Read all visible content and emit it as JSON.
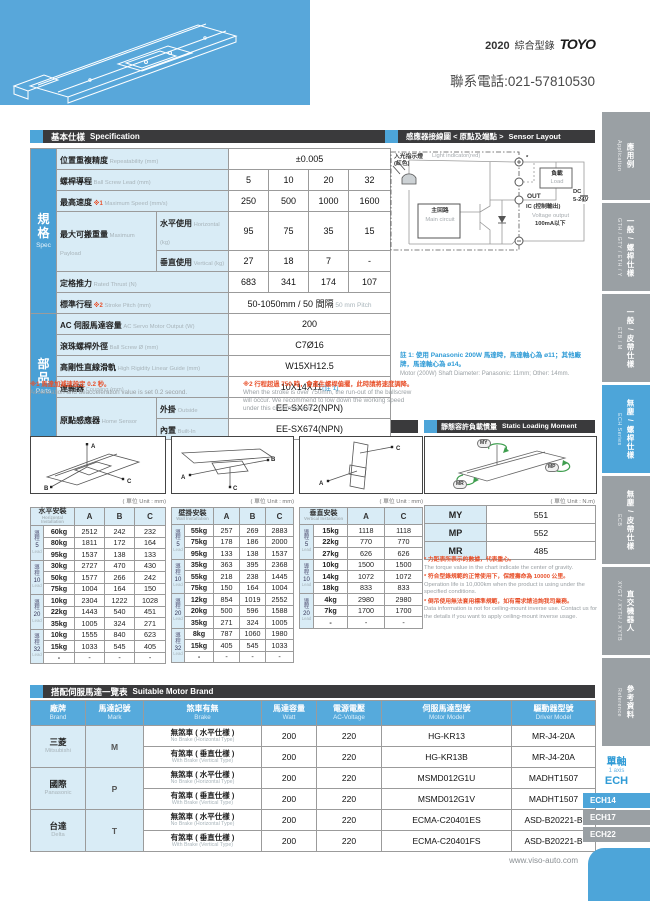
{
  "colors": {
    "accent_blue": "#4da5d9",
    "header_bar": "#3a3a3c",
    "light_blue": "#d9ecf6",
    "note_red": "#e8502a",
    "note_blue": "#2f9bd6",
    "tab_gray": "#9aa0a4"
  },
  "header": {
    "catalog_year": "2020",
    "catalog_label": "綜合型錄",
    "brand_logo": "TOYO",
    "phone": "聯系電話:021-57810530"
  },
  "footer": {
    "website": "www.viso-auto.com"
  },
  "sidebar": {
    "tabs": [
      {
        "zh": "應用例",
        "en": "Application",
        "active": false
      },
      {
        "zh": "一般 / 螺桿仕樣",
        "en": "GTH / GTY / ETH / Y",
        "active": false
      },
      {
        "zh": "一般 / 皮帶仕樣",
        "en": "ETB / M",
        "active": false
      },
      {
        "zh": "無塵 / 螺桿仕樣",
        "en": "ECH Series",
        "active": true
      },
      {
        "zh": "無塵 / 皮帶仕樣",
        "en": "ECB",
        "active": false
      },
      {
        "zh": "直交機器人",
        "en": "XYGT / XYTH / XYTB",
        "active": false
      },
      {
        "zh": "參考資料",
        "en": "Reference",
        "active": false
      }
    ],
    "series": {
      "zh": "單軸",
      "en": "1 axis",
      "code": "ECH"
    },
    "models": [
      {
        "label": "ECH14",
        "active": true
      },
      {
        "label": "ECH17",
        "active": false
      },
      {
        "label": "ECH22",
        "active": false
      }
    ]
  },
  "spec": {
    "title_zh": "基本仕樣",
    "title_en": "Specification",
    "rows": [
      {
        "group": {
          "zh": "規格",
          "en": "Spec",
          "rowspan": 7
        },
        "label": {
          "zh": "位置重複精度",
          "en": "Repeatability (mm)"
        },
        "values": [
          "±0.005"
        ],
        "colspan": 4
      },
      {
        "label": {
          "zh": "螺桿導程",
          "en": "Ball Screw Lead (mm)"
        },
        "values": [
          "5",
          "10",
          "20",
          "32"
        ]
      },
      {
        "label": {
          "zh": "最高速度",
          "en": "Maximum Speed (mm/s)",
          "note": "※1"
        },
        "values": [
          "250",
          "500",
          "1000",
          "1600"
        ]
      },
      {
        "label": {
          "zh": "最大可搬重量",
          "en": "Maximum Payload",
          "rowspan": 2
        },
        "sub": {
          "zh": "水平使用",
          "en": "Horizontal (kg)"
        },
        "values": [
          "95",
          "75",
          "35",
          "15"
        ]
      },
      {
        "sub": {
          "zh": "垂直使用",
          "en": "Vertical (kg)"
        },
        "values": [
          "27",
          "18",
          "7",
          "-"
        ]
      },
      {
        "label": {
          "zh": "定格推力",
          "en": "Rated Thrust (N)"
        },
        "values": [
          "683",
          "341",
          "174",
          "107"
        ]
      },
      {
        "label": {
          "zh": "標準行程",
          "en": "Stroke Pitch (mm)",
          "note": "※2"
        },
        "values": [
          "50-1050mm / 50 間隔"
        ],
        "suffix": "50 mm Pitch",
        "colspan": 4
      },
      {
        "group": {
          "zh": "部品",
          "en": "Parts",
          "rowspan": 6
        },
        "label": {
          "zh": "AC 伺服馬達容量",
          "en": "AC Servo Motor Output (W)"
        },
        "values": [
          "200"
        ],
        "colspan": 4
      },
      {
        "label": {
          "zh": "滾珠螺桿外徑",
          "en": "Ball Screw Ø (mm)"
        },
        "values": [
          "C7Ø16"
        ],
        "colspan": 4
      },
      {
        "label": {
          "zh": "高剛性直線滑軌",
          "en": "High Rigidity Linear Guide (mm)"
        },
        "values": [
          "W15XH12.5"
        ],
        "colspan": 4
      },
      {
        "label": {
          "zh": "連軸器",
          "en": "Coupling (mm)"
        },
        "values": [
          "10X14X11"
        ],
        "value_note": "(註 1)",
        "colspan": 4
      },
      {
        "label": {
          "zh": "原點感應器",
          "en": "Home Sensor",
          "rowspan": 2
        },
        "sub": {
          "zh": "外掛",
          "en": "Outside"
        },
        "values": [
          "EE-SX672(NPN)"
        ],
        "colspan": 4
      },
      {
        "sub": {
          "zh": "內置",
          "en": "Built-In"
        },
        "values": [
          "EE-SX674(NPN)"
        ],
        "colspan": 4
      }
    ],
    "footnotes": [
      {
        "zh": "※1 馬達加減速設定 0.2 秒。",
        "en": "Acceleration and deacceleration value is set 0.2 second."
      },
      {
        "zh": "※2 行程超過 750 時，會產生螺桿偏擺，此時請將速度調降。",
        "en": "When the stroke is over 750mm, the run-out of the ballscrew will occur. We recommend to low down the working speed under this circumstances."
      }
    ]
  },
  "sensor": {
    "title_zh": "感應器接線圖 < 原點及端點 >",
    "title_en": "Sensor Layout",
    "labels": {
      "light_zh": "入光指示燈(紅色)",
      "light_en": "Light indicator(red)",
      "main_zh": "主回路",
      "main_en": "Main circuit",
      "load_zh": "負載",
      "load_en": "Load",
      "out": "OUT",
      "terminal_note": "*",
      "ic_zh": "IC (控制輸出)",
      "ic_en": "Voltage output",
      "ic_limit": "100mA以下",
      "dc_line1": "DC",
      "dc_line2": "5-24V"
    },
    "note_zh": "註 1: 使用 Panasonic 200W 馬達時，馬達軸心為 ø11；其他廠牌，馬達軸心為 ø14。",
    "note_en": "Motor (200W) Shaft Diameter: Panasonic: 11mm; Other: 14mm."
  },
  "overhang": {
    "title_zh": "容許負載力距表",
    "title_en": "Allowable Overhang",
    "unit": "( 單位 Unit : mm)",
    "lead_zh": "導程",
    "lead_en": "Lead",
    "tables": [
      {
        "name_zh": "水平安裝",
        "name_en": "Horizontal Installation",
        "cols": [
          "A",
          "B",
          "C"
        ],
        "groups": [
          {
            "lead": "5",
            "rows": [
              [
                "60kg",
                "2512",
                "242",
                "232"
              ],
              [
                "80kg",
                "1811",
                "172",
                "164"
              ],
              [
                "95kg",
                "1537",
                "138",
                "133"
              ]
            ]
          },
          {
            "lead": "10",
            "rows": [
              [
                "30kg",
                "2727",
                "470",
                "430"
              ],
              [
                "50kg",
                "1577",
                "266",
                "242"
              ],
              [
                "75kg",
                "1004",
                "164",
                "150"
              ]
            ]
          },
          {
            "lead": "20",
            "rows": [
              [
                "10kg",
                "2304",
                "1222",
                "1028"
              ],
              [
                "22kg",
                "1443",
                "540",
                "451"
              ],
              [
                "35kg",
                "1005",
                "324",
                "271"
              ]
            ]
          },
          {
            "lead": "32",
            "rows": [
              [
                "10kg",
                "1555",
                "840",
                "623"
              ],
              [
                "15kg",
                "1033",
                "545",
                "405"
              ],
              [
                "-",
                "-",
                "-",
                "-"
              ]
            ]
          }
        ]
      },
      {
        "name_zh": "壁掛安裝",
        "name_en": "Wall Installation",
        "cols": [
          "A",
          "B",
          "C"
        ],
        "groups": [
          {
            "lead": "5",
            "rows": [
              [
                "55kg",
                "257",
                "269",
                "2883"
              ],
              [
                "75kg",
                "178",
                "186",
                "2000"
              ],
              [
                "95kg",
                "133",
                "138",
                "1537"
              ]
            ]
          },
          {
            "lead": "10",
            "rows": [
              [
                "35kg",
                "363",
                "395",
                "2368"
              ],
              [
                "55kg",
                "218",
                "238",
                "1445"
              ],
              [
                "75kg",
                "150",
                "164",
                "1004"
              ]
            ]
          },
          {
            "lead": "20",
            "rows": [
              [
                "12kg",
                "854",
                "1019",
                "2552"
              ],
              [
                "20kg",
                "500",
                "596",
                "1588"
              ],
              [
                "35kg",
                "271",
                "324",
                "1005"
              ]
            ]
          },
          {
            "lead": "32",
            "rows": [
              [
                "8kg",
                "787",
                "1060",
                "1980"
              ],
              [
                "15kg",
                "405",
                "545",
                "1033"
              ],
              [
                "-",
                "-",
                "-",
                "-"
              ]
            ]
          }
        ]
      },
      {
        "name_zh": "垂直安裝",
        "name_en": "Vertical Installation",
        "cols": [
          "A",
          "C"
        ],
        "groups": [
          {
            "lead": "5",
            "rows": [
              [
                "15kg",
                "1118",
                "1118"
              ],
              [
                "22kg",
                "770",
                "770"
              ],
              [
                "27kg",
                "626",
                "626"
              ]
            ]
          },
          {
            "lead": "10",
            "rows": [
              [
                "10kg",
                "1500",
                "1500"
              ],
              [
                "14kg",
                "1072",
                "1072"
              ],
              [
                "18kg",
                "833",
                "833"
              ]
            ]
          },
          {
            "lead": "20",
            "rows": [
              [
                "4kg",
                "2980",
                "2980"
              ],
              [
                "7kg",
                "1700",
                "1700"
              ],
              [
                "-",
                "-",
                "-"
              ]
            ]
          }
        ]
      }
    ]
  },
  "moment": {
    "title_zh": "靜態容許負載慣量",
    "title_en": "Static Loading Moment",
    "unit": "( 單位 Unit : N.m)",
    "rows": [
      [
        "MY",
        "551"
      ],
      [
        "MP",
        "552"
      ],
      [
        "MR",
        "485"
      ]
    ],
    "notes": [
      {
        "zh": "* 力距表所表示的數據，代表重心。",
        "en": "The torque value in the chart indicate the center of gravity."
      },
      {
        "zh": "* 符合型錄規範的正常使用下，保證壽命為 10000 公里。",
        "en": "Operation life is 10,000km when the product is using under the specified conditions."
      },
      {
        "zh": "* 倒吊使用無法套用標準規範，如有需求請洽詢我司業務。",
        "en": "Data information is not for ceiling-mount inverse use. Contact us for the details if you want to apply ceiling-mount inverse usage."
      }
    ]
  },
  "motor": {
    "title_zh": "搭配伺服馬達一覽表",
    "title_en": "Suitable Motor Brand",
    "headers": [
      {
        "zh": "廠牌",
        "en": "Brand"
      },
      {
        "zh": "馬達記號",
        "en": "Mark"
      },
      {
        "zh": "煞車有無",
        "en": "Brake"
      },
      {
        "zh": "馬達容量",
        "en": "Watt"
      },
      {
        "zh": "電源電壓",
        "en": "AC-Voltage"
      },
      {
        "zh": "伺服馬達型號",
        "en": "Motor Model"
      },
      {
        "zh": "驅動器型號",
        "en": "Driver Model"
      }
    ],
    "brands": [
      {
        "zh": "三菱",
        "en": "Mitsubishi",
        "mark": "M",
        "rows": [
          {
            "brake_zh": "無煞車 ( 水平仕樣 )",
            "brake_en": "No Brake (Horizontal Type)",
            "watt": "200",
            "volt": "220",
            "motor": "HG-KR13",
            "driver": "MR-J4-20A"
          },
          {
            "brake_zh": "有煞車 ( 垂直仕樣 )",
            "brake_en": "With Brake (Vertical Type)",
            "watt": "200",
            "volt": "220",
            "motor": "HG-KR13B",
            "driver": "MR-J4-20A"
          }
        ]
      },
      {
        "zh": "國際",
        "en": "Panasonic",
        "mark": "P",
        "rows": [
          {
            "brake_zh": "無煞車 ( 水平仕樣 )",
            "brake_en": "No Brake (Horizontal Type)",
            "watt": "200",
            "volt": "220",
            "motor": "MSMD012G1U",
            "driver": "MADHT1507"
          },
          {
            "brake_zh": "有煞車 ( 垂直仕樣 )",
            "brake_en": "With Brake (Vertical Type)",
            "watt": "200",
            "volt": "220",
            "motor": "MSMD012G1V",
            "driver": "MADHT1507"
          }
        ]
      },
      {
        "zh": "台達",
        "en": "Delta",
        "mark": "T",
        "rows": [
          {
            "brake_zh": "無煞車 ( 水平仕樣 )",
            "brake_en": "No Brake (Horizontal Type)",
            "watt": "200",
            "volt": "220",
            "motor": "ECMA-C20401ES",
            "driver": "ASD-B20221-B"
          },
          {
            "brake_zh": "有煞車 ( 垂直仕樣 )",
            "brake_en": "With Brake (Vertical Type)",
            "watt": "200",
            "volt": "220",
            "motor": "ECMA-C20401FS",
            "driver": "ASD-B20221-B"
          }
        ]
      }
    ]
  }
}
